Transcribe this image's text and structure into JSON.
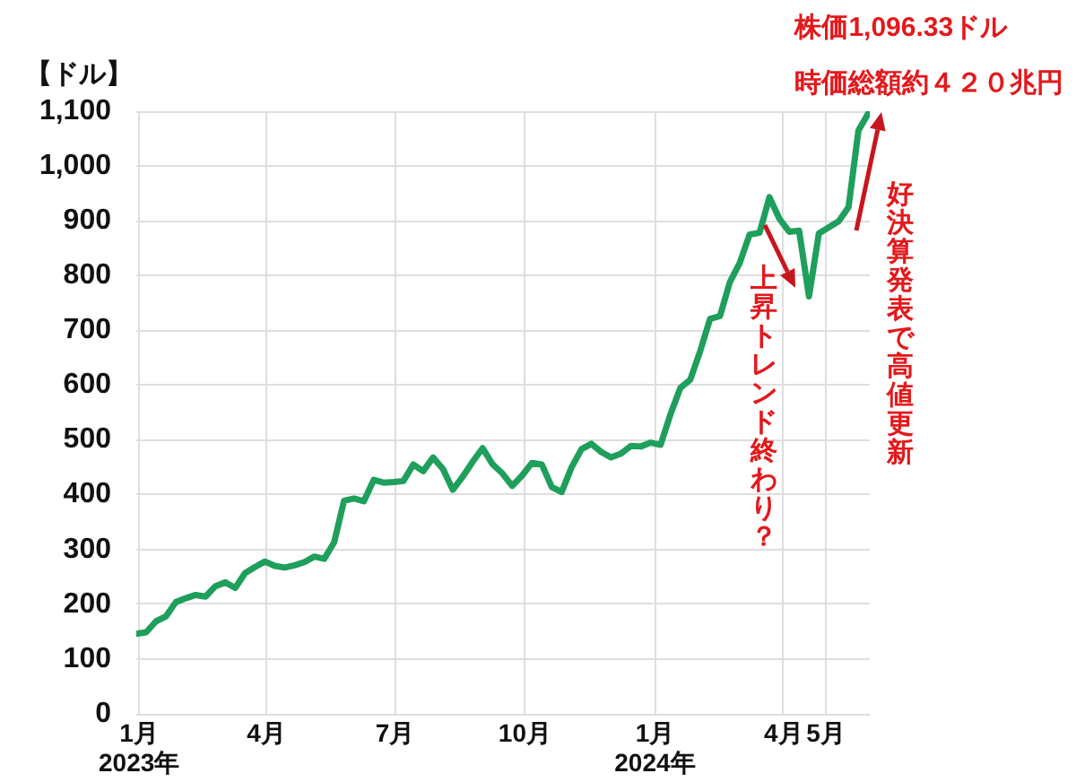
{
  "chart_data": {
    "type": "line",
    "ylabel": "【ドル】",
    "x": [
      "2022-12-30",
      "2023-01-06",
      "2023-01-13",
      "2023-01-20",
      "2023-01-27",
      "2023-02-03",
      "2023-02-10",
      "2023-02-17",
      "2023-02-24",
      "2023-03-03",
      "2023-03-10",
      "2023-03-17",
      "2023-03-24",
      "2023-03-31",
      "2023-04-07",
      "2023-04-14",
      "2023-04-21",
      "2023-04-28",
      "2023-05-05",
      "2023-05-12",
      "2023-05-19",
      "2023-05-26",
      "2023-06-02",
      "2023-06-09",
      "2023-06-16",
      "2023-06-23",
      "2023-06-30",
      "2023-07-07",
      "2023-07-14",
      "2023-07-21",
      "2023-07-28",
      "2023-08-04",
      "2023-08-11",
      "2023-08-18",
      "2023-08-25",
      "2023-09-01",
      "2023-09-08",
      "2023-09-15",
      "2023-09-22",
      "2023-09-29",
      "2023-10-06",
      "2023-10-13",
      "2023-10-20",
      "2023-10-27",
      "2023-11-03",
      "2023-11-10",
      "2023-11-17",
      "2023-11-24",
      "2023-12-01",
      "2023-12-08",
      "2023-12-15",
      "2023-12-22",
      "2023-12-29",
      "2024-01-05",
      "2024-01-12",
      "2024-01-19",
      "2024-01-26",
      "2024-02-02",
      "2024-02-09",
      "2024-02-16",
      "2024-02-23",
      "2024-03-01",
      "2024-03-08",
      "2024-03-15",
      "2024-03-22",
      "2024-03-29",
      "2024-04-05",
      "2024-04-12",
      "2024-04-19",
      "2024-04-26",
      "2024-05-03",
      "2024-05-10",
      "2024-05-17",
      "2024-05-24",
      "2024-05-31"
    ],
    "series": [
      {
        "color": "#1e9f5b",
        "values": [
          146,
          149,
          169,
          178,
          204,
          211,
          217,
          214,
          233,
          240,
          230,
          257,
          268,
          278,
          270,
          267,
          271,
          277,
          287,
          283,
          313,
          389,
          393,
          388,
          427,
          422,
          423,
          425,
          455,
          443,
          468,
          447,
          409,
          433,
          460,
          485,
          456,
          439,
          416,
          435,
          458,
          455,
          414,
          405,
          450,
          483,
          493,
          478,
          468,
          475,
          489,
          488,
          495,
          491,
          547,
          595,
          610,
          662,
          721,
          726,
          788,
          823,
          875,
          878,
          943,
          904,
          880,
          882,
          762,
          877,
          888,
          899,
          925,
          1065,
          1096.33
        ]
      }
    ],
    "xlim": [
      "2022-12-30",
      "2024-06-01"
    ],
    "xticks": [
      {
        "value": "2023-01-01",
        "label": "1月\n2023年"
      },
      {
        "value": "2023-04-01",
        "label": "4月"
      },
      {
        "value": "2023-07-01",
        "label": "7月"
      },
      {
        "value": "2023-10-01",
        "label": "10月"
      },
      {
        "value": "2024-01-01",
        "label": "1月\n2024年"
      },
      {
        "value": "2024-04-01",
        "label": "4月"
      },
      {
        "value": "2024-05-01",
        "label": "5月"
      }
    ],
    "ylim": [
      0,
      1100
    ],
    "yticks": [
      0,
      100,
      200,
      300,
      400,
      500,
      600,
      700,
      800,
      900,
      {
        "value": 1000,
        "label": "1,000"
      },
      {
        "value": 1100,
        "label": "1,100"
      }
    ],
    "grid": true,
    "annotations": [
      {
        "text": "株価1,096.33ドル",
        "x": "2024-05-31",
        "y": 1096.33
      },
      {
        "text": "時価総額約４２０兆円",
        "x": "2024-05-31",
        "y": 1096.33
      },
      "上昇トレンド終わり？",
      "好決算発表で高値更新"
    ]
  }
}
